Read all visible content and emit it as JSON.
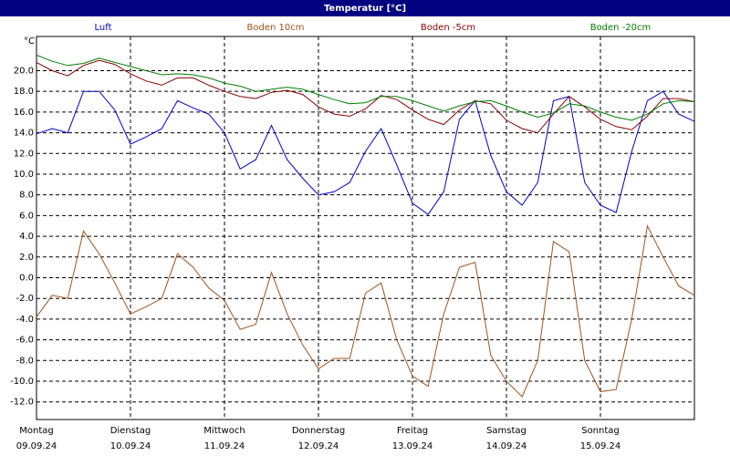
{
  "chart_data": {
    "type": "line",
    "title": "Temperatur [°C]",
    "y_unit": "°C",
    "categories": [
      "Montag",
      null,
      null,
      null,
      null,
      null,
      "Dienstag",
      null,
      null,
      null,
      null,
      null,
      "Mittwoch",
      null,
      null,
      null,
      null,
      null,
      "Donnerstag",
      null,
      null,
      null,
      null,
      null,
      "Freitag",
      null,
      null,
      null,
      null,
      null,
      "Samstag",
      null,
      null,
      null,
      null,
      null,
      "Sonntag",
      null,
      null,
      null,
      null,
      null,
      null
    ],
    "dates": [
      "09.09.24",
      null,
      null,
      null,
      null,
      null,
      "10.09.24",
      null,
      null,
      null,
      null,
      null,
      "11.09.24",
      null,
      null,
      null,
      null,
      null,
      "12.09.24",
      null,
      null,
      null,
      null,
      null,
      "13.09.24",
      null,
      null,
      null,
      null,
      null,
      "14.09.24",
      null,
      null,
      null,
      null,
      null,
      "15.09.24",
      null,
      null,
      null,
      null,
      null,
      null
    ],
    "ylim": [
      -13.7,
      23.3
    ],
    "yticks": [
      {
        "value": 20,
        "label": "20.0"
      },
      {
        "value": 18,
        "label": "18.0"
      },
      {
        "value": 16,
        "label": "16.0"
      },
      {
        "value": 14,
        "label": "14.0"
      },
      {
        "value": 12,
        "label": "12.0"
      },
      {
        "value": 10,
        "label": "10.0"
      },
      {
        "value": 8,
        "label": "8.0"
      },
      {
        "value": 6,
        "label": "6.0"
      },
      {
        "value": 4,
        "label": "4.0"
      },
      {
        "value": 2,
        "label": "2.0"
      },
      {
        "value": 0,
        "label": "0.0"
      },
      {
        "value": -2,
        "label": "-2.0"
      },
      {
        "value": -4,
        "label": "-4.0"
      },
      {
        "value": -6,
        "label": "-6.0"
      },
      {
        "value": -8,
        "label": "-8.0"
      },
      {
        "value": -10,
        "label": "-10.0"
      },
      {
        "value": -12,
        "label": "-12.0"
      }
    ],
    "grid": true,
    "series": [
      {
        "name": "Luft",
        "color": "#0000cc",
        "values": [
          13.9,
          14.4,
          14.0,
          18.0,
          18.0,
          16.2,
          12.9,
          13.6,
          14.4,
          17.1,
          16.4,
          15.8,
          14.0,
          10.5,
          11.4,
          14.7,
          11.4,
          9.6,
          8.0,
          8.3,
          9.2,
          12.2,
          14.4,
          10.9,
          7.2,
          6.1,
          8.3,
          15.3,
          17.1,
          11.8,
          8.3,
          7.0,
          9.2,
          17.1,
          17.5,
          9.2,
          7.0,
          6.3,
          12.2,
          17.1,
          18.0,
          15.8,
          15.1
        ]
      },
      {
        "name": "Boden 10cm",
        "color": "#a0521e",
        "values": [
          -3.8,
          -1.7,
          -2.0,
          4.5,
          2.3,
          -0.5,
          -3.5,
          -2.8,
          -2.0,
          2.3,
          1.0,
          -1.0,
          -2.2,
          -5.0,
          -4.5,
          0.5,
          -3.5,
          -6.5,
          -8.8,
          -7.8,
          -7.8,
          -1.5,
          -0.5,
          -6.0,
          -9.5,
          -10.5,
          -3.5,
          1.0,
          1.5,
          -7.5,
          -10.0,
          -11.5,
          -8.0,
          3.5,
          2.5,
          -8.0,
          -11.0,
          -10.8,
          -4.0,
          5.0,
          2.0,
          -0.8,
          -1.7
        ]
      },
      {
        "name": "Boden -5cm",
        "color": "#8b0000",
        "values": [
          20.8,
          20.0,
          19.5,
          20.5,
          21.0,
          20.6,
          19.7,
          19.0,
          18.6,
          19.3,
          19.3,
          18.6,
          18.0,
          17.5,
          17.3,
          17.9,
          18.1,
          17.7,
          16.5,
          15.8,
          15.6,
          16.3,
          17.6,
          17.2,
          16.2,
          15.3,
          14.8,
          16.2,
          17.1,
          16.8,
          15.2,
          14.4,
          14.0,
          15.8,
          17.5,
          16.5,
          15.3,
          14.6,
          14.3,
          15.6,
          17.3,
          17.3,
          17.0
        ]
      },
      {
        "name": "Boden -20cm",
        "color": "#008000",
        "values": [
          21.5,
          20.9,
          20.5,
          20.7,
          21.2,
          20.8,
          20.4,
          20.0,
          19.6,
          19.7,
          19.6,
          19.3,
          18.8,
          18.5,
          18.0,
          18.2,
          18.4,
          18.2,
          17.7,
          17.2,
          16.8,
          16.9,
          17.5,
          17.5,
          17.1,
          16.6,
          16.1,
          16.6,
          17.0,
          17.1,
          16.6,
          16.0,
          15.5,
          15.9,
          16.8,
          16.6,
          16.0,
          15.5,
          15.2,
          15.8,
          16.8,
          17.1,
          17.0
        ]
      }
    ]
  }
}
